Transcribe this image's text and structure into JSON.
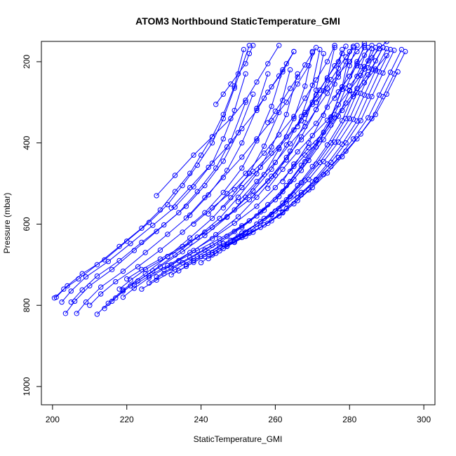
{
  "chart_data": {
    "type": "line",
    "title": "ATOM3 Northbound StaticTemperature_GMI",
    "xlabel": "StaticTemperature_GMI",
    "ylabel": "Pressure (mbar)",
    "xlim": [
      197,
      303
    ],
    "ylim": [
      1045,
      150
    ],
    "y_reversed": true,
    "x_ticks": [
      200,
      220,
      240,
      260,
      280,
      300
    ],
    "y_ticks": [
      200,
      400,
      600,
      800,
      1000
    ],
    "grid": false,
    "legend": "none",
    "series_color": "#0000ff",
    "marker": "open-circle",
    "series": [
      {
        "x": [
          200.5,
          203,
          207,
          212,
          218,
          224,
          229,
          233,
          237,
          240,
          243,
          246,
          249,
          251.5
        ],
        "y": [
          782,
          760,
          735,
          700,
          655,
          610,
          565,
          520,
          475,
          430,
          385,
          330,
          260,
          170
        ]
      },
      {
        "x": [
          201,
          204,
          208,
          214,
          220,
          226,
          231,
          235,
          239,
          243,
          246,
          249,
          253
        ],
        "y": [
          780,
          752,
          722,
          688,
          642,
          596,
          552,
          505,
          455,
          400,
          340,
          265,
          160
        ]
      },
      {
        "x": [
          202.5,
          205,
          209,
          215,
          221,
          227,
          233,
          238,
          243,
          246,
          249,
          252
        ],
        "y": [
          792,
          765,
          730,
          692,
          648,
          603,
          558,
          508,
          450,
          390,
          320,
          230
        ]
      },
      {
        "x": [
          203.5,
          206,
          210,
          216,
          222,
          228,
          234,
          239,
          244,
          248,
          252
        ],
        "y": [
          820,
          790,
          752,
          712,
          665,
          618,
          572,
          520,
          462,
          395,
          300
        ]
      },
      {
        "x": [
          205,
          208,
          212,
          218,
          224,
          230,
          236,
          241,
          246,
          250,
          254
        ],
        "y": [
          792,
          762,
          728,
          690,
          645,
          602,
          556,
          505,
          445,
          375,
          280
        ]
      },
      {
        "x": [
          206.5,
          209,
          213,
          219,
          225,
          231,
          237,
          242,
          247,
          251,
          255,
          258
        ],
        "y": [
          820,
          792,
          755,
          716,
          670,
          625,
          578,
          528,
          468,
          400,
          315,
          230
        ]
      },
      {
        "x": [
          210,
          213,
          217,
          223,
          229,
          235,
          241,
          246,
          251,
          255,
          259,
          262
        ],
        "y": [
          800,
          772,
          742,
          705,
          664,
          620,
          572,
          522,
          462,
          395,
          310,
          220
        ]
      },
      {
        "x": [
          212,
          215,
          219,
          225,
          231,
          237,
          243,
          248,
          253,
          257,
          261,
          264
        ],
        "y": [
          822,
          795,
          762,
          722,
          680,
          634,
          586,
          535,
          475,
          408,
          325,
          220
        ]
      },
      {
        "x": [
          214,
          217,
          221,
          227,
          233,
          239,
          245,
          250,
          255,
          259,
          263,
          266
        ],
        "y": [
          808,
          782,
          752,
          715,
          676,
          632,
          586,
          534,
          476,
          410,
          330,
          230
        ]
      },
      {
        "x": [
          216,
          219,
          223,
          229,
          235,
          241,
          247,
          252,
          257,
          261,
          265,
          268,
          270
        ],
        "y": [
          790,
          765,
          740,
          705,
          668,
          628,
          583,
          534,
          478,
          415,
          340,
          260,
          175
        ]
      },
      {
        "x": [
          218,
          221,
          225,
          231,
          237,
          243,
          249,
          254,
          259,
          263,
          267,
          270,
          272
        ],
        "y": [
          760,
          738,
          712,
          680,
          646,
          608,
          565,
          518,
          465,
          405,
          335,
          258,
          170
        ]
      },
      {
        "x": [
          219,
          222,
          226,
          232,
          238,
          244,
          250,
          255,
          260,
          264,
          268,
          271,
          273
        ],
        "y": [
          780,
          758,
          732,
          700,
          665,
          626,
          582,
          534,
          480,
          420,
          350,
          270,
          180
        ]
      },
      {
        "x": [
          220,
          224,
          229,
          235,
          241,
          247,
          253,
          258,
          263,
          267,
          271,
          274,
          276
        ],
        "y": [
          735,
          712,
          686,
          655,
          620,
          582,
          540,
          494,
          442,
          385,
          318,
          245,
          165
        ]
      },
      {
        "x": [
          222,
          226,
          231,
          237,
          243,
          249,
          255,
          260,
          265,
          269,
          273,
          276,
          278
        ],
        "y": [
          750,
          728,
          702,
          670,
          636,
          598,
          556,
          510,
          458,
          400,
          332,
          255,
          170
        ]
      },
      {
        "x": [
          224,
          228,
          233,
          239,
          245,
          251,
          257,
          262,
          267,
          271,
          275,
          278,
          280
        ],
        "y": [
          760,
          738,
          712,
          680,
          646,
          608,
          566,
          520,
          468,
          410,
          342,
          262,
          175
        ]
      },
      {
        "x": [
          226,
          230,
          235,
          241,
          247,
          253,
          258,
          263,
          267,
          271,
          275,
          278,
          280,
          282
        ],
        "y": [
          745,
          722,
          695,
          664,
          630,
          592,
          552,
          505,
          455,
          400,
          336,
          268,
          210,
          160
        ]
      },
      {
        "x": [
          228,
          232,
          237,
          243,
          249,
          255,
          260,
          264,
          268,
          272,
          276,
          279,
          282,
          284
        ],
        "y": [
          730,
          708,
          682,
          652,
          618,
          580,
          540,
          495,
          446,
          392,
          330,
          265,
          205,
          160
        ]
      },
      {
        "x": [
          230,
          234,
          239,
          245,
          251,
          256,
          261,
          265,
          269,
          273,
          277,
          280,
          283,
          285
        ],
        "y": [
          712,
          690,
          665,
          636,
          604,
          570,
          532,
          490,
          443,
          392,
          334,
          272,
          212,
          165
        ]
      },
      {
        "x": [
          232,
          236,
          241,
          247,
          252,
          257,
          262,
          266,
          270,
          274,
          278,
          281,
          284,
          286
        ],
        "y": [
          725,
          704,
          680,
          650,
          620,
          586,
          548,
          505,
          458,
          405,
          345,
          280,
          218,
          168
        ]
      },
      {
        "x": [
          234,
          238,
          243,
          249,
          254,
          259,
          263,
          267,
          271,
          275,
          279,
          282,
          285,
          288
        ],
        "y": [
          715,
          694,
          670,
          642,
          612,
          578,
          540,
          498,
          452,
          400,
          340,
          276,
          215,
          160
        ]
      },
      {
        "x": [
          236,
          240,
          245,
          250,
          255,
          260,
          264,
          268,
          272,
          276,
          280,
          283,
          286,
          289
        ],
        "y": [
          700,
          680,
          656,
          630,
          600,
          568,
          532,
          492,
          448,
          398,
          340,
          278,
          218,
          165
        ]
      },
      {
        "x": [
          238,
          242,
          246,
          251,
          256,
          261,
          265,
          269,
          273,
          277,
          281,
          284,
          287,
          290
        ],
        "y": [
          690,
          670,
          648,
          622,
          594,
          562,
          528,
          490,
          446,
          398,
          342,
          282,
          222,
          168
        ]
      },
      {
        "x": [
          240,
          243,
          247,
          252,
          257,
          262,
          266,
          270,
          274,
          278,
          282,
          285,
          288,
          291
        ],
        "y": [
          695,
          676,
          655,
          630,
          602,
          570,
          535,
          496,
          452,
          403,
          346,
          285,
          225,
          170
        ]
      },
      {
        "x": [
          242,
          245,
          249,
          254,
          259,
          263,
          267,
          271,
          275,
          279,
          283,
          286,
          289,
          292
        ],
        "y": [
          685,
          666,
          645,
          620,
          592,
          562,
          528,
          490,
          448,
          400,
          345,
          286,
          228,
          172
        ]
      },
      {
        "x": [
          244,
          247,
          251,
          256,
          261,
          265,
          269,
          273,
          277,
          281,
          285,
          288,
          291,
          294
        ],
        "y": [
          672,
          654,
          633,
          608,
          580,
          550,
          516,
          478,
          436,
          390,
          338,
          282,
          226,
          170
        ]
      },
      {
        "x": [
          246,
          249,
          253,
          258,
          262,
          266,
          270,
          274,
          278,
          282,
          286,
          289,
          292,
          295
        ],
        "y": [
          660,
          642,
          622,
          598,
          572,
          542,
          510,
          474,
          434,
          390,
          340,
          286,
          230,
          175
        ]
      },
      {
        "x": [
          248,
          251,
          255,
          259,
          263,
          267,
          271,
          275,
          279,
          283,
          287,
          290,
          293
        ],
        "y": [
          640,
          622,
          600,
          576,
          550,
          522,
          492,
          458,
          420,
          378,
          330,
          280,
          225
        ]
      },
      {
        "x": [
          238,
          243,
          249,
          254,
          259,
          263,
          267,
          270,
          274,
          277,
          280,
          282,
          284
        ],
        "y": [
          600,
          560,
          515,
          470,
          425,
          385,
          345,
          305,
          265,
          230,
          200,
          175,
          155
        ]
      },
      {
        "x": [
          228,
          233,
          238,
          243,
          248,
          252,
          255,
          258,
          261
        ],
        "y": [
          530,
          480,
          430,
          385,
          340,
          295,
          250,
          205,
          160
        ]
      },
      {
        "x": [
          232,
          237,
          242,
          247,
          251,
          255,
          258,
          262,
          265
        ],
        "y": [
          560,
          510,
          460,
          410,
          365,
          320,
          275,
          225,
          175
        ]
      },
      {
        "x": [
          236,
          241,
          246,
          251,
          255,
          259,
          263,
          266,
          269,
          271
        ],
        "y": [
          585,
          535,
          485,
          435,
          390,
          345,
          300,
          255,
          210,
          165
        ]
      },
      {
        "x": [
          242,
          247,
          252,
          257,
          261,
          265,
          268,
          271,
          274,
          276
        ],
        "y": [
          575,
          525,
          475,
          425,
          380,
          335,
          290,
          245,
          200,
          160
        ]
      },
      {
        "x": [
          246,
          251,
          256,
          261,
          265,
          268,
          271,
          274,
          277,
          279
        ],
        "y": [
          560,
          510,
          460,
          412,
          368,
          325,
          282,
          240,
          200,
          162
        ]
      },
      {
        "x": [
          250,
          255,
          260,
          264,
          268,
          271,
          274,
          277,
          279,
          281
        ],
        "y": [
          545,
          495,
          448,
          402,
          360,
          318,
          278,
          238,
          200,
          165
        ]
      },
      {
        "x": [
          254,
          259,
          263,
          267,
          271,
          274,
          277,
          280,
          282,
          284
        ],
        "y": [
          530,
          482,
          436,
          392,
          352,
          312,
          274,
          236,
          200,
          165
        ]
      },
      {
        "x": [
          258,
          262,
          266,
          270,
          274,
          277,
          280,
          283,
          285,
          287
        ],
        "y": [
          512,
          465,
          422,
          382,
          344,
          306,
          270,
          234,
          198,
          165
        ]
      },
      {
        "x": [
          262,
          265,
          269,
          273,
          276,
          279,
          282,
          285,
          287,
          289
        ],
        "y": [
          495,
          452,
          412,
          374,
          338,
          302,
          266,
          232,
          198,
          165
        ]
      },
      {
        "x": [
          264,
          268,
          272,
          275,
          278,
          281,
          284,
          287,
          290
        ],
        "y": [
          470,
          430,
          392,
          356,
          320,
          286,
          252,
          218,
          185
        ]
      },
      {
        "x": [
          244,
          246,
          248,
          250,
          252,
          253,
          254
        ],
        "y": [
          305,
          280,
          255,
          230,
          205,
          180,
          160
        ]
      },
      {
        "x": [
          255,
          257,
          259,
          261,
          263,
          265
        ],
        "y": [
          315,
          290,
          262,
          235,
          205,
          175
        ]
      },
      {
        "x": [
          258,
          260,
          262,
          264,
          266,
          268,
          270
        ],
        "y": [
          350,
          322,
          295,
          266,
          238,
          208,
          178
        ]
      },
      {
        "x": [
          266,
          268,
          270,
          272,
          274,
          276,
          278
        ],
        "y": [
          360,
          330,
          300,
          270,
          240,
          210,
          180
        ]
      },
      {
        "x": [
          271,
          273,
          275,
          277,
          279,
          281
        ],
        "y": [
          300,
          272,
          244,
          216,
          188,
          162
        ]
      },
      {
        "x": [
          276,
          278,
          280,
          282,
          284,
          286
        ],
        "y": [
          290,
          262,
          236,
          210,
          184,
          160
        ]
      },
      {
        "x": [
          280,
          282,
          284,
          286,
          288,
          290
        ],
        "y": [
          260,
          236,
          212,
          190,
          168,
          150
        ]
      }
    ]
  }
}
